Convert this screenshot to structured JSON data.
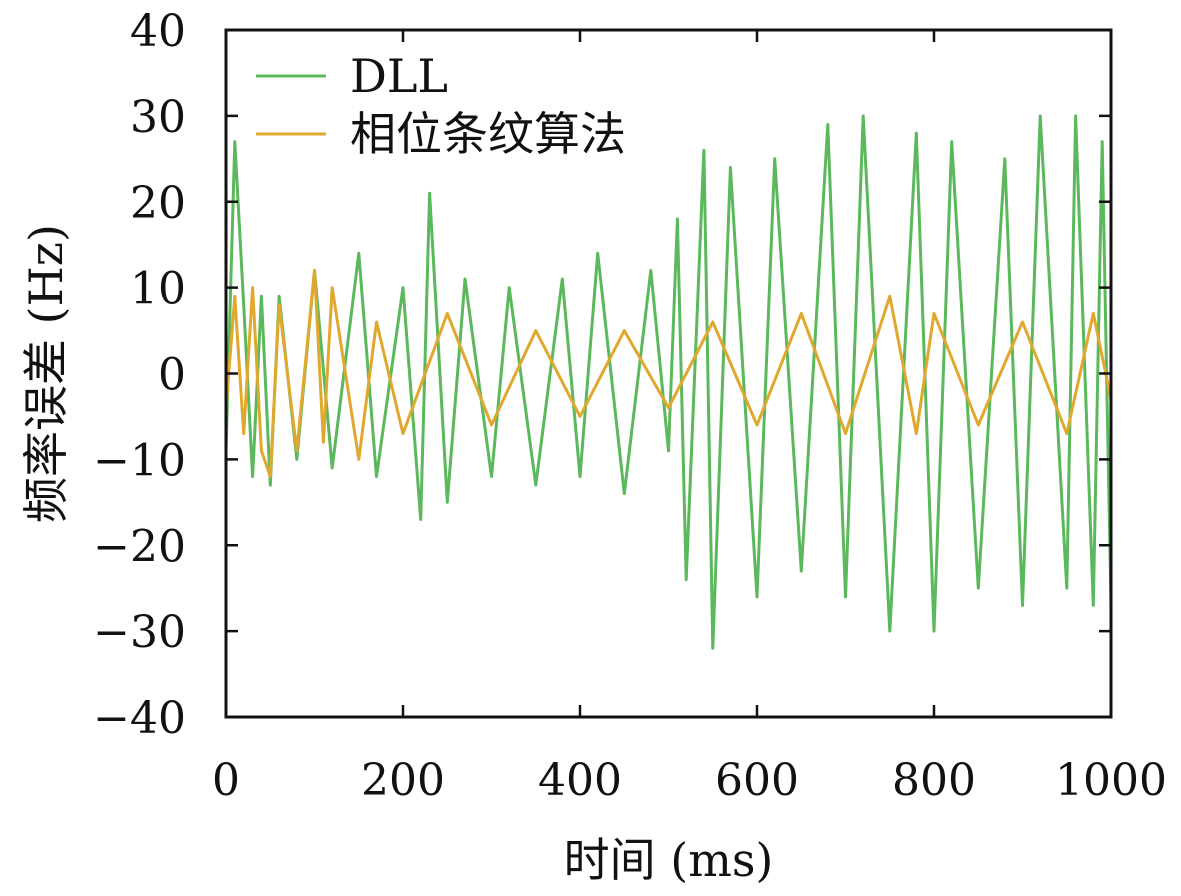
{
  "chart_data": {
    "type": "line",
    "xlabel": "时间 (ms)",
    "ylabel": "频率误差 (Hz)",
    "xlim": [
      0,
      1000
    ],
    "ylim": [
      -40,
      40
    ],
    "x_ticks": [
      "0",
      "200",
      "400",
      "600",
      "800",
      "1000"
    ],
    "y_ticks": [
      "−40",
      "−30",
      "−20",
      "−10",
      "0",
      "10",
      "20",
      "30",
      "40"
    ],
    "grid": false,
    "legend_position": "top-left",
    "series": [
      {
        "name": "DLL",
        "color": "#5cb85c",
        "x": [
          0,
          10,
          20,
          30,
          40,
          50,
          60,
          80,
          100,
          120,
          150,
          170,
          200,
          220,
          230,
          250,
          270,
          300,
          320,
          350,
          380,
          400,
          420,
          450,
          480,
          500,
          510,
          520,
          540,
          550,
          570,
          600,
          620,
          650,
          680,
          700,
          720,
          750,
          780,
          800,
          820,
          850,
          880,
          900,
          920,
          950,
          960,
          980,
          990,
          1000
        ],
        "values": [
          -9,
          27,
          8,
          -12,
          9,
          -13,
          9,
          -10,
          12,
          -11,
          14,
          -12,
          10,
          -17,
          21,
          -15,
          11,
          -12,
          10,
          -13,
          11,
          -12,
          14,
          -14,
          12,
          -9,
          18,
          -24,
          26,
          -32,
          24,
          -26,
          25,
          -23,
          29,
          -26,
          30,
          -30,
          28,
          -30,
          27,
          -25,
          25,
          -27,
          30,
          -25,
          30,
          -27,
          27,
          -27
        ]
      },
      {
        "name": "相位条纹算法",
        "color": "#e0a82e",
        "x": [
          0,
          10,
          20,
          30,
          40,
          50,
          60,
          80,
          100,
          110,
          120,
          150,
          170,
          200,
          250,
          300,
          350,
          400,
          450,
          500,
          550,
          600,
          650,
          700,
          750,
          780,
          800,
          850,
          900,
          950,
          980,
          1000
        ],
        "values": [
          -4,
          9,
          -7,
          10,
          -9,
          -12,
          8,
          -9,
          12,
          -8,
          10,
          -10,
          6,
          -7,
          7,
          -6,
          5,
          -5,
          5,
          -4,
          6,
          -6,
          7,
          -7,
          9,
          -7,
          7,
          -6,
          6,
          -7,
          7,
          -3
        ]
      }
    ]
  }
}
